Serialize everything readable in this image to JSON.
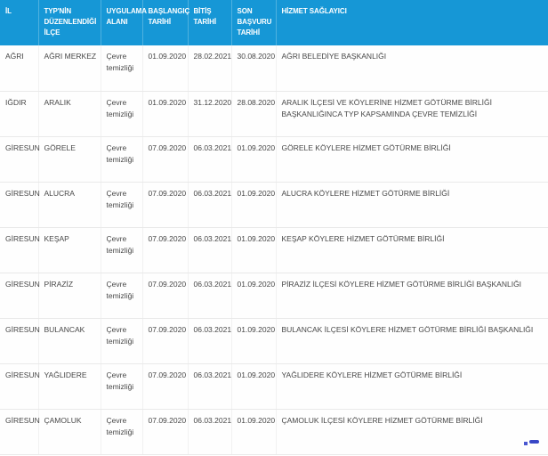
{
  "colors": {
    "header_bg": "#1697d6",
    "header_text": "#ffffff",
    "header_divider": "#4fb1df",
    "body_text": "#474747",
    "row_divider": "#e9e9e9",
    "artifact_blue": "#3847c6"
  },
  "table": {
    "columns": [
      {
        "key": "il",
        "label": "İL"
      },
      {
        "key": "ilce",
        "label": "TYP'NİN DÜZENLENDİĞİ İLÇE"
      },
      {
        "key": "alan",
        "label": "UYGULAMA ALANI"
      },
      {
        "key": "baslangic",
        "label": "BAŞLANGIÇ TARİHİ"
      },
      {
        "key": "bitis",
        "label": "BİTİŞ TARİHİ"
      },
      {
        "key": "son_basvuru",
        "label": "SON BAŞVURU TARİHİ"
      },
      {
        "key": "saglayici",
        "label": "HİZMET SAĞLAYICI"
      }
    ],
    "rows": [
      {
        "il": "AĞRI",
        "ilce": "AĞRI MERKEZ",
        "alan": "Çevre temizliği",
        "baslangic": "01.09.2020",
        "bitis": "28.02.2021",
        "son_basvuru": "30.08.2020",
        "saglayici": "AĞRI BELEDİYE BAŞKANLIĞI"
      },
      {
        "il": "IĞDIR",
        "ilce": "ARALIK",
        "alan": "Çevre temizliği",
        "baslangic": "01.09.2020",
        "bitis": "31.12.2020",
        "son_basvuru": "28.08.2020",
        "saglayici": "ARALIK İLÇESİ VE KÖYLERİNE HİZMET GÖTÜRME BİRLİĞİ BAŞKANLIĞINCA TYP KAPSAMINDA ÇEVRE TEMİZLİĞİ"
      },
      {
        "il": "GİRESUN",
        "ilce": "GÖRELE",
        "alan": "Çevre temizliği",
        "baslangic": "07.09.2020",
        "bitis": "06.03.2021",
        "son_basvuru": "01.09.2020",
        "saglayici": "GÖRELE KÖYLERE HİZMET GÖTÜRME BİRLİĞİ"
      },
      {
        "il": "GİRESUN",
        "ilce": "ALUCRA",
        "alan": "Çevre temizliği",
        "baslangic": "07.09.2020",
        "bitis": "06.03.2021",
        "son_basvuru": "01.09.2020",
        "saglayici": "ALUCRA KÖYLERE HİZMET GÖTÜRME BİRLİĞİ"
      },
      {
        "il": "GİRESUN",
        "ilce": "KEŞAP",
        "alan": "Çevre temizliği",
        "baslangic": "07.09.2020",
        "bitis": "06.03.2021",
        "son_basvuru": "01.09.2020",
        "saglayici": "KEŞAP KÖYLERE HİZMET GÖTÜRME BİRLİĞİ"
      },
      {
        "il": "GİRESUN",
        "ilce": "PİRAZİZ",
        "alan": "Çevre temizliği",
        "baslangic": "07.09.2020",
        "bitis": "06.03.2021",
        "son_basvuru": "01.09.2020",
        "saglayici": "PİRAZİZ İLÇESİ KÖYLERE HİZMET GÖTÜRME BİRLİĞİ BAŞKANLIĞI"
      },
      {
        "il": "GİRESUN",
        "ilce": "BULANCAK",
        "alan": "Çevre temizliği",
        "baslangic": "07.09.2020",
        "bitis": "06.03.2021",
        "son_basvuru": "01.09.2020",
        "saglayici": "BULANCAK İLÇESİ KÖYLERE HİZMET GÖTÜRME BİRLİĞİ BAŞKANLIĞI"
      },
      {
        "il": "GİRESUN",
        "ilce": "YAĞLIDERE",
        "alan": "Çevre temizliği",
        "baslangic": "07.09.2020",
        "bitis": "06.03.2021",
        "son_basvuru": "01.09.2020",
        "saglayici": "YAĞLIDERE KÖYLERE HİZMET GÖTÜRME BİRLİĞİ"
      },
      {
        "il": "GİRESUN",
        "ilce": "ÇAMOLUK",
        "alan": "Çevre temizliği",
        "baslangic": "07.09.2020",
        "bitis": "06.03.2021",
        "son_basvuru": "01.09.2020",
        "saglayici": "ÇAMOLUK İLÇESİ KÖYLERE HİZMET GÖTÜRME BİRLİĞİ"
      }
    ]
  }
}
